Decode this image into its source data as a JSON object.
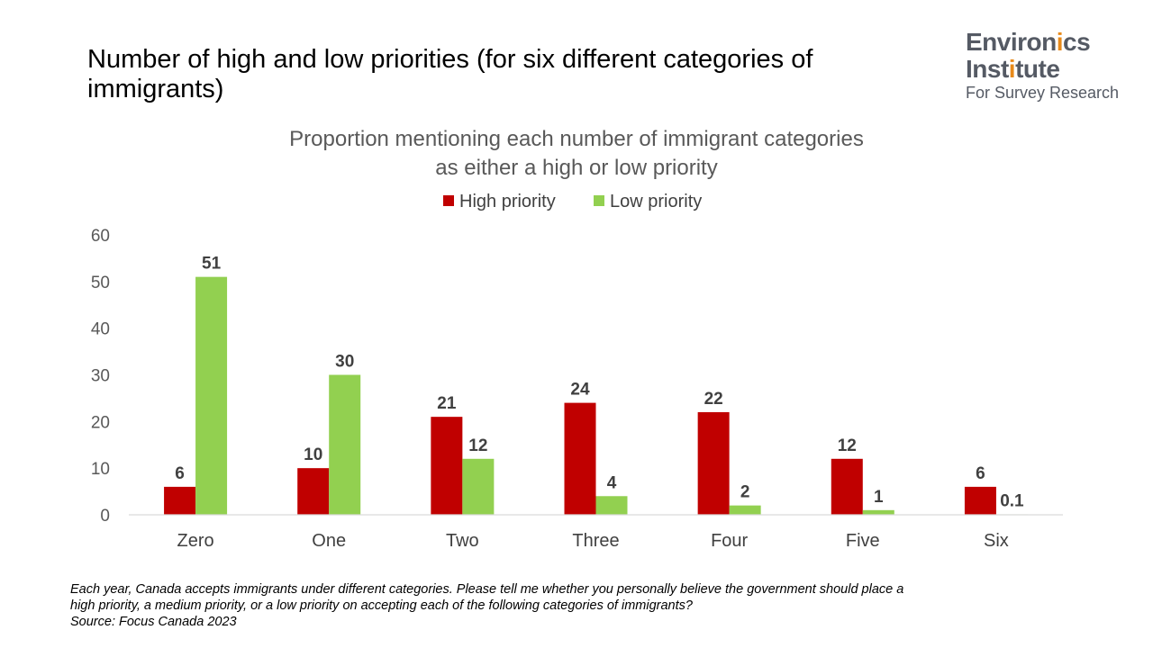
{
  "slide": {
    "title": "Number of high and low priorities (for six different categories of immigrants)"
  },
  "logo": {
    "line1_a": "Environ",
    "line1_b": "i",
    "line1_c": "cs",
    "line2_a": "Inst",
    "line2_b": "i",
    "line2_c": "tute",
    "line3": "For Survey Research",
    "accent_color": "#e88a1a",
    "text_color": "#555a64"
  },
  "chart_data": {
    "type": "bar",
    "title_line1": "Proportion mentioning each number of immigrant categories",
    "title_line2": "as either a high or low priority",
    "categories": [
      "Zero",
      "One",
      "Two",
      "Three",
      "Four",
      "Five",
      "Six"
    ],
    "series": [
      {
        "name": "High priority",
        "color": "#c00000",
        "values": [
          6,
          10,
          21,
          24,
          22,
          12,
          6
        ],
        "labels": [
          "6",
          "10",
          "21",
          "24",
          "22",
          "12",
          "6"
        ]
      },
      {
        "name": "Low priority",
        "color": "#92d050",
        "values": [
          51,
          30,
          12,
          4,
          2,
          1,
          0.1
        ],
        "labels": [
          "51",
          "30",
          "12",
          "4",
          "2",
          "1",
          "0.1"
        ]
      }
    ],
    "ylim": [
      0,
      60
    ],
    "yticks": [
      "0",
      "10",
      "20",
      "30",
      "40",
      "50",
      "60"
    ],
    "legend_position": "top-center",
    "grid": false
  },
  "footnote": {
    "line1": "Each year, Canada accepts immigrants under different categories. Please tell me whether you personally believe the government should place a",
    "line2": "high priority, a medium priority, or a low priority on accepting each of the following categories of immigrants?",
    "line3": "Source: Focus Canada 2023"
  }
}
